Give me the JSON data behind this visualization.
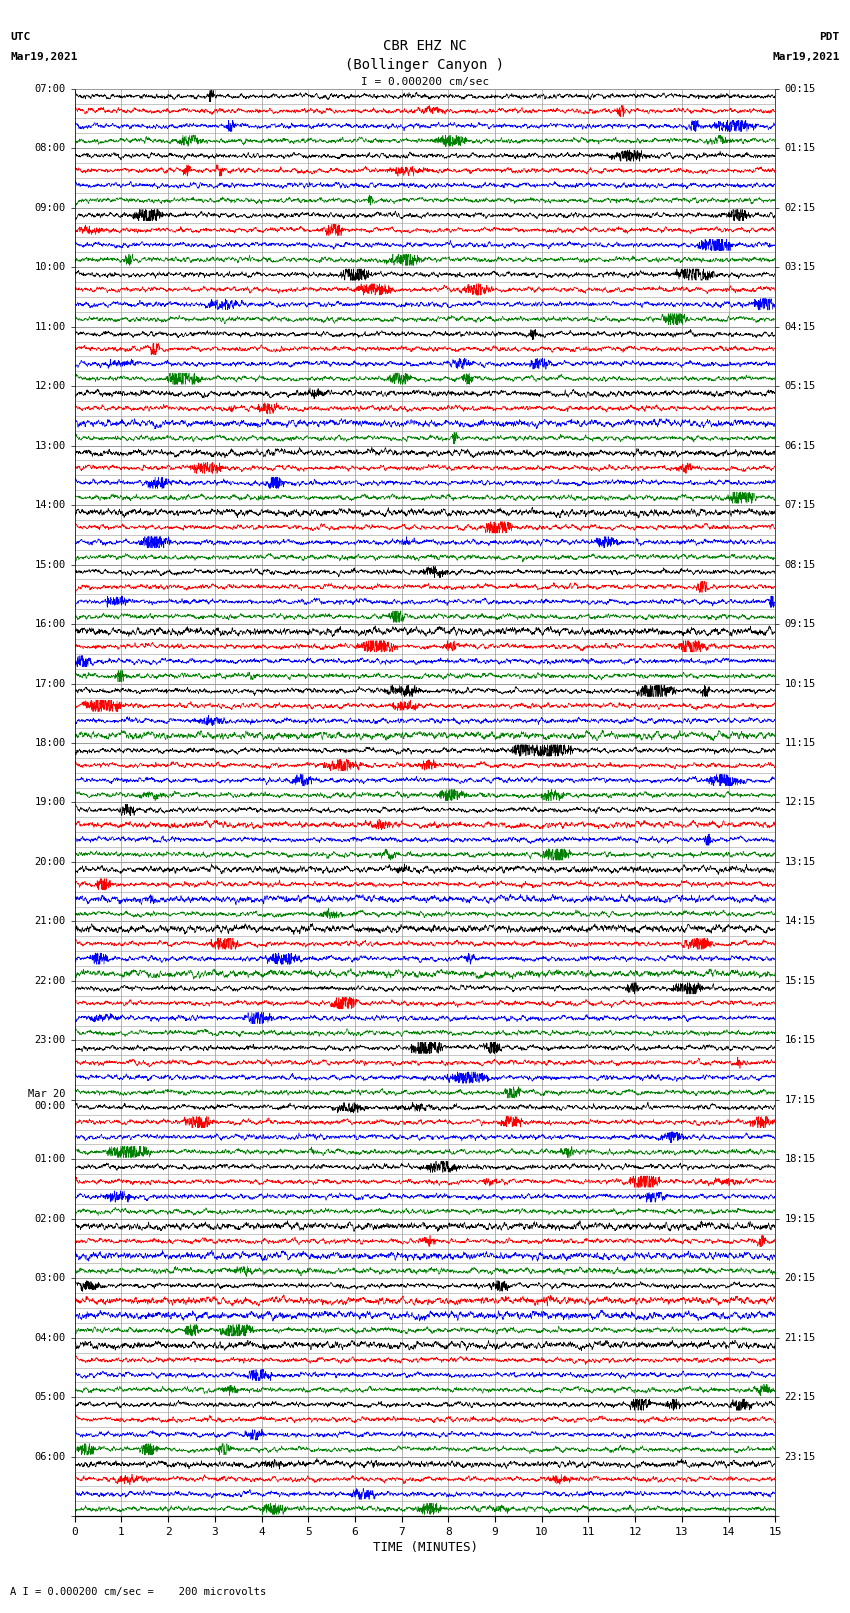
{
  "title_line1": "CBR EHZ NC",
  "title_line2": "(Bollinger Canyon )",
  "title_scale": "I = 0.000200 cm/sec",
  "label_utc": "UTC",
  "label_pdt": "PDT",
  "date_left": "Mar19,2021",
  "date_right": "Mar19,2021",
  "xlabel": "TIME (MINUTES)",
  "footer": "A I = 0.000200 cm/sec =    200 microvolts",
  "left_times_major": [
    "07:00",
    "08:00",
    "09:00",
    "10:00",
    "11:00",
    "12:00",
    "13:00",
    "14:00",
    "15:00",
    "16:00",
    "17:00",
    "18:00",
    "19:00",
    "20:00",
    "21:00",
    "22:00",
    "23:00",
    "Mar 20\n00:00",
    "01:00",
    "02:00",
    "03:00",
    "04:00",
    "05:00",
    "06:00"
  ],
  "right_times_major": [
    "00:15",
    "01:15",
    "02:15",
    "03:15",
    "04:15",
    "05:15",
    "06:15",
    "07:15",
    "08:15",
    "09:15",
    "10:15",
    "11:15",
    "12:15",
    "13:15",
    "14:15",
    "15:15",
    "16:15",
    "17:15",
    "18:15",
    "19:15",
    "20:15",
    "21:15",
    "22:15",
    "23:15"
  ],
  "n_hours": 24,
  "n_traces_per_hour": 4,
  "colors": [
    "black",
    "red",
    "blue",
    "green"
  ],
  "x_min": 0,
  "x_max": 15,
  "x_ticks": [
    0,
    1,
    2,
    3,
    4,
    5,
    6,
    7,
    8,
    9,
    10,
    11,
    12,
    13,
    14,
    15
  ],
  "bg_color": "white",
  "grid_color": "#999999",
  "amplitude": 0.38,
  "noise_scale": 0.18,
  "n_points": 3000
}
